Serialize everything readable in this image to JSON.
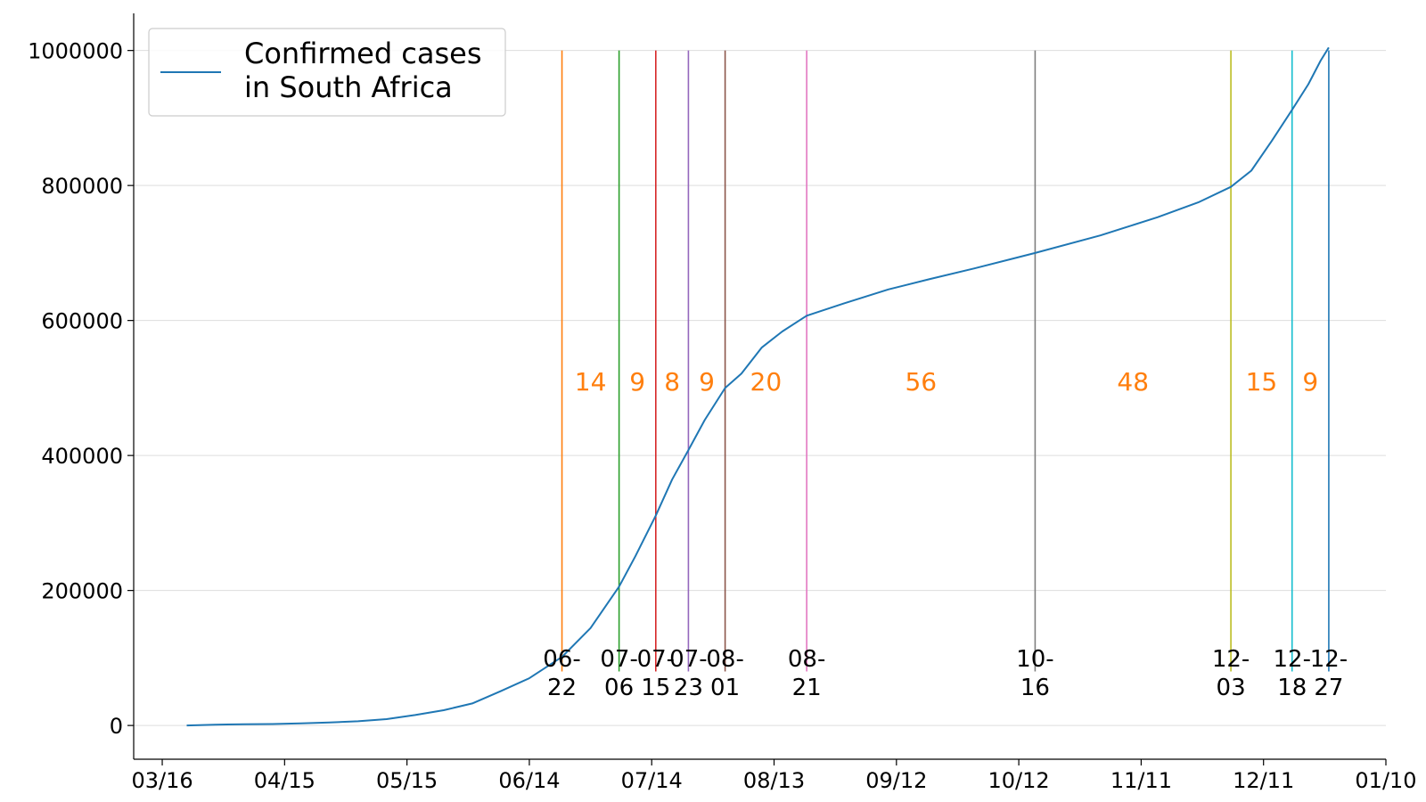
{
  "chart_data": {
    "type": "line",
    "title": "",
    "xlabel": "",
    "ylabel": "",
    "grid": "horizontal",
    "legend_position": "top-left",
    "xlim": [
      "2020-03-09",
      "2021-01-10"
    ],
    "ylim": [
      -50000,
      1055000
    ],
    "x_ticks": [
      {
        "date": "2020-03-16",
        "label": "03/16"
      },
      {
        "date": "2020-04-15",
        "label": "04/15"
      },
      {
        "date": "2020-05-15",
        "label": "05/15"
      },
      {
        "date": "2020-06-14",
        "label": "06/14"
      },
      {
        "date": "2020-07-14",
        "label": "07/14"
      },
      {
        "date": "2020-08-13",
        "label": "08/13"
      },
      {
        "date": "2020-09-12",
        "label": "09/12"
      },
      {
        "date": "2020-10-12",
        "label": "10/12"
      },
      {
        "date": "2020-11-11",
        "label": "11/11"
      },
      {
        "date": "2020-12-11",
        "label": "12/11"
      },
      {
        "date": "2021-01-10",
        "label": "01/10"
      }
    ],
    "y_ticks": [
      {
        "value": 0,
        "label": "0"
      },
      {
        "value": 200000,
        "label": "200000"
      },
      {
        "value": 400000,
        "label": "400000"
      },
      {
        "value": 600000,
        "label": "600000"
      },
      {
        "value": 800000,
        "label": "800000"
      },
      {
        "value": 1000000,
        "label": "1000000"
      }
    ],
    "series": [
      {
        "name": "Confirmed cases\nin South Africa",
        "color": "#1f77b4",
        "points": [
          [
            "2020-03-22",
            0
          ],
          [
            "2020-03-29",
            1200
          ],
          [
            "2020-04-05",
            1700
          ],
          [
            "2020-04-12",
            2200
          ],
          [
            "2020-04-19",
            3200
          ],
          [
            "2020-04-26",
            4500
          ],
          [
            "2020-05-03",
            6300
          ],
          [
            "2020-05-10",
            9400
          ],
          [
            "2020-05-17",
            15500
          ],
          [
            "2020-05-24",
            22600
          ],
          [
            "2020-05-31",
            32700
          ],
          [
            "2020-06-07",
            50800
          ],
          [
            "2020-06-14",
            70000
          ],
          [
            "2020-06-22",
            101600
          ],
          [
            "2020-06-29",
            144300
          ],
          [
            "2020-07-06",
            205700
          ],
          [
            "2020-07-10",
            250700
          ],
          [
            "2020-07-15",
            311000
          ],
          [
            "2020-07-19",
            364300
          ],
          [
            "2020-07-23",
            408000
          ],
          [
            "2020-07-27",
            452500
          ],
          [
            "2020-08-01",
            500000
          ],
          [
            "2020-08-05",
            521300
          ],
          [
            "2020-08-10",
            560000
          ],
          [
            "2020-08-15",
            583700
          ],
          [
            "2020-08-21",
            607000
          ],
          [
            "2020-08-30",
            625000
          ],
          [
            "2020-09-10",
            646000
          ],
          [
            "2020-09-20",
            661000
          ],
          [
            "2020-10-01",
            677000
          ],
          [
            "2020-10-16",
            700000
          ],
          [
            "2020-11-01",
            726000
          ],
          [
            "2020-11-15",
            753000
          ],
          [
            "2020-11-25",
            775000
          ],
          [
            "2020-12-03",
            798000
          ],
          [
            "2020-12-08",
            822000
          ],
          [
            "2020-12-13",
            866000
          ],
          [
            "2020-12-18",
            912000
          ],
          [
            "2020-12-22",
            950000
          ],
          [
            "2020-12-25",
            985000
          ],
          [
            "2020-12-27",
            1004400
          ]
        ]
      }
    ],
    "events": [
      {
        "date": "2020-06-22",
        "label": "06-\n22",
        "color": "#ff7f0e"
      },
      {
        "date": "2020-07-06",
        "label": "07-\n06",
        "color": "#2ca02c"
      },
      {
        "date": "2020-07-15",
        "label": "07-\n15",
        "color": "#d62728"
      },
      {
        "date": "2020-07-23",
        "label": "07-\n23",
        "color": "#9467bd"
      },
      {
        "date": "2020-08-01",
        "label": "08-\n01",
        "color": "#8c564b"
      },
      {
        "date": "2020-08-21",
        "label": "08-\n21",
        "color": "#e377c2"
      },
      {
        "date": "2020-10-16",
        "label": "10-\n16",
        "color": "#7f7f7f"
      },
      {
        "date": "2020-12-03",
        "label": "12-\n03",
        "color": "#bcbd22"
      },
      {
        "date": "2020-12-18",
        "label": "12-\n18",
        "color": "#17becf"
      },
      {
        "date": "2020-12-27",
        "label": "12-\n27",
        "color": "#1f77b4"
      }
    ],
    "interval_labels": [
      "14",
      "9",
      "8",
      "9",
      "20",
      "56",
      "48",
      "15",
      "9"
    ],
    "interval_label_color": "#ff7f0e",
    "interval_label_y": 510000,
    "event_line_top": 1000000,
    "event_label_y": 80000
  }
}
